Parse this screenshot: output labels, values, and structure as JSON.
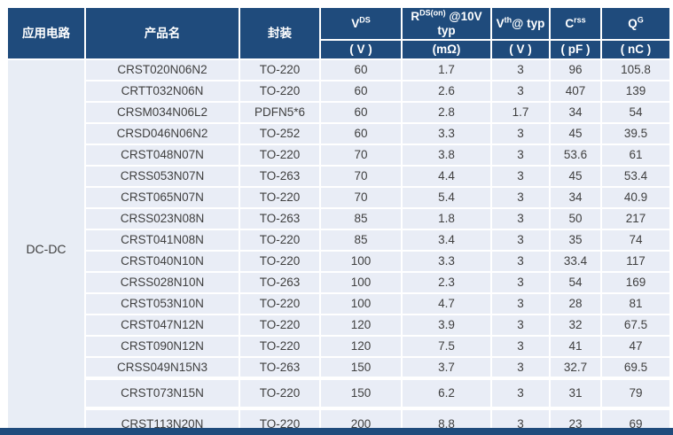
{
  "table": {
    "application_header": "应用电路",
    "application": "DC-DC",
    "columns": {
      "product": "产品名",
      "package": "封装",
      "vds": {
        "base": "V",
        "sup": "DS",
        "unit": "( V )"
      },
      "rds": {
        "base": "R",
        "sup": "DS(on)",
        "rest": " @10V typ",
        "unit": "(mΩ)"
      },
      "vth": {
        "base": "V",
        "sup": "th",
        "rest": "@ typ",
        "unit": "( V )"
      },
      "crss": {
        "base": "C",
        "sup": "rss",
        "unit": "( pF )"
      },
      "qg": {
        "base": "Q",
        "sup": "G",
        "unit": "( nC )"
      }
    },
    "rows": [
      {
        "product": "CRST020N06N2",
        "package": "TO-220",
        "vds": "60",
        "rds": "1.7",
        "vth": "3",
        "crss": "96",
        "qg": "105.8"
      },
      {
        "product": "CRTT032N06N",
        "package": "TO-220",
        "vds": "60",
        "rds": "2.6",
        "vth": "3",
        "crss": "407",
        "qg": "139"
      },
      {
        "product": "CRSM034N06L2",
        "package": "PDFN5*6",
        "vds": "60",
        "rds": "2.8",
        "vth": "1.7",
        "crss": "34",
        "qg": "54"
      },
      {
        "product": "CRSD046N06N2",
        "package": "TO-252",
        "vds": "60",
        "rds": "3.3",
        "vth": "3",
        "crss": "45",
        "qg": "39.5"
      },
      {
        "product": "CRST048N07N",
        "package": "TO-220",
        "vds": "70",
        "rds": "3.8",
        "vth": "3",
        "crss": "53.6",
        "qg": "61"
      },
      {
        "product": "CRSS053N07N",
        "package": "TO-263",
        "vds": "70",
        "rds": "4.4",
        "vth": "3",
        "crss": "45",
        "qg": "53.4"
      },
      {
        "product": "CRST065N07N",
        "package": "TO-220",
        "vds": "70",
        "rds": "5.4",
        "vth": "3",
        "crss": "34",
        "qg": "40.9"
      },
      {
        "product": "CRSS023N08N",
        "package": "TO-263",
        "vds": "85",
        "rds": "1.8",
        "vth": "3",
        "crss": "50",
        "qg": "217"
      },
      {
        "product": "CRST041N08N",
        "package": "TO-220",
        "vds": "85",
        "rds": "3.4",
        "vth": "3",
        "crss": "35",
        "qg": "74"
      },
      {
        "product": "CRST040N10N",
        "package": "TO-220",
        "vds": "100",
        "rds": "3.3",
        "vth": "3",
        "crss": "33.4",
        "qg": "117"
      },
      {
        "product": "CRSS028N10N",
        "package": "TO-263",
        "vds": "100",
        "rds": "2.3",
        "vth": "3",
        "crss": "54",
        "qg": "169"
      },
      {
        "product": "CRST053N10N",
        "package": "TO-220",
        "vds": "100",
        "rds": "4.7",
        "vth": "3",
        "crss": "28",
        "qg": "81"
      },
      {
        "product": "CRST047N12N",
        "package": "TO-220",
        "vds": "120",
        "rds": "3.9",
        "vth": "3",
        "crss": "32",
        "qg": "67.5"
      },
      {
        "product": "CRST090N12N",
        "package": "TO-220",
        "vds": "120",
        "rds": "7.5",
        "vth": "3",
        "crss": "41",
        "qg": "47"
      },
      {
        "product": "CRSS049N15N3",
        "package": "TO-263",
        "vds": "150",
        "rds": "3.7",
        "vth": "3",
        "crss": "32.7",
        "qg": "69.5"
      },
      {
        "product": "CRST073N15N",
        "package": "TO-220",
        "vds": "150",
        "rds": "6.2",
        "vth": "3",
        "crss": "31",
        "qg": "79",
        "tall": true
      },
      {
        "product": "CRST113N20N",
        "package": "TO-220",
        "vds": "200",
        "rds": "8.8",
        "vth": "3",
        "crss": "23",
        "qg": "69",
        "tall": true
      }
    ]
  },
  "colors": {
    "header_bg": "#1F4B7C",
    "row_bg": "#E9EDF6",
    "text": "#3F3F3F",
    "border": "#FFFFFF"
  }
}
